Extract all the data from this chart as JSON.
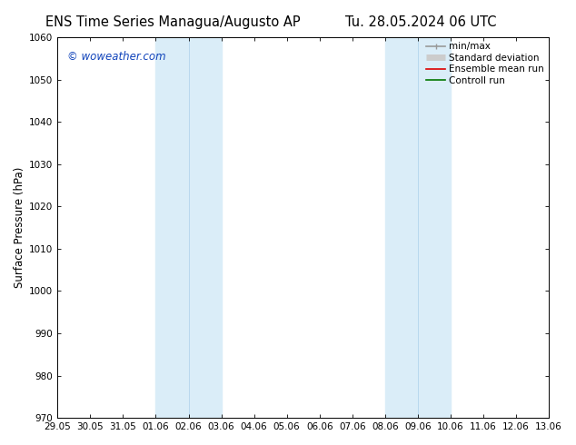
{
  "title_left": "ENS Time Series Managua/Augusto AP",
  "title_right": "Tu. 28.05.2024 06 UTC",
  "ylabel": "Surface Pressure (hPa)",
  "ylim": [
    970,
    1060
  ],
  "yticks": [
    970,
    980,
    990,
    1000,
    1010,
    1020,
    1030,
    1040,
    1050,
    1060
  ],
  "xtick_labels": [
    "29.05",
    "30.05",
    "31.05",
    "01.06",
    "02.06",
    "03.06",
    "04.06",
    "05.06",
    "06.06",
    "07.06",
    "08.06",
    "09.06",
    "10.06",
    "11.06",
    "12.06",
    "13.06"
  ],
  "xtick_positions": [
    0,
    1,
    2,
    3,
    4,
    5,
    6,
    7,
    8,
    9,
    10,
    11,
    12,
    13,
    14,
    15
  ],
  "shaded_regions": [
    {
      "xmin": 3,
      "xmax": 4,
      "color": "#ddeef8"
    },
    {
      "xmin": 4,
      "xmax": 5,
      "color": "#ddeef8"
    },
    {
      "xmin": 10,
      "xmax": 11,
      "color": "#ddeef8"
    },
    {
      "xmin": 11,
      "xmax": 12,
      "color": "#ddeef8"
    }
  ],
  "shaded_dividers": [
    4,
    11
  ],
  "watermark_text": "© woweather.com",
  "watermark_color": "#1144bb",
  "background_color": "#ffffff",
  "legend_items": [
    {
      "label": "min/max",
      "color": "#999999",
      "lw": 1.2,
      "ls": "-",
      "marker": "|"
    },
    {
      "label": "Standard deviation",
      "color": "#cccccc",
      "lw": 5,
      "ls": "-",
      "marker": "none"
    },
    {
      "label": "Ensemble mean run",
      "color": "#dd0000",
      "lw": 1.2,
      "ls": "-",
      "marker": "none"
    },
    {
      "label": "Controll run",
      "color": "#007700",
      "lw": 1.2,
      "ls": "-",
      "marker": "none"
    }
  ],
  "title_fontsize": 10.5,
  "tick_fontsize": 7.5,
  "ylabel_fontsize": 8.5,
  "legend_fontsize": 7.5,
  "watermark_fontsize": 8.5
}
